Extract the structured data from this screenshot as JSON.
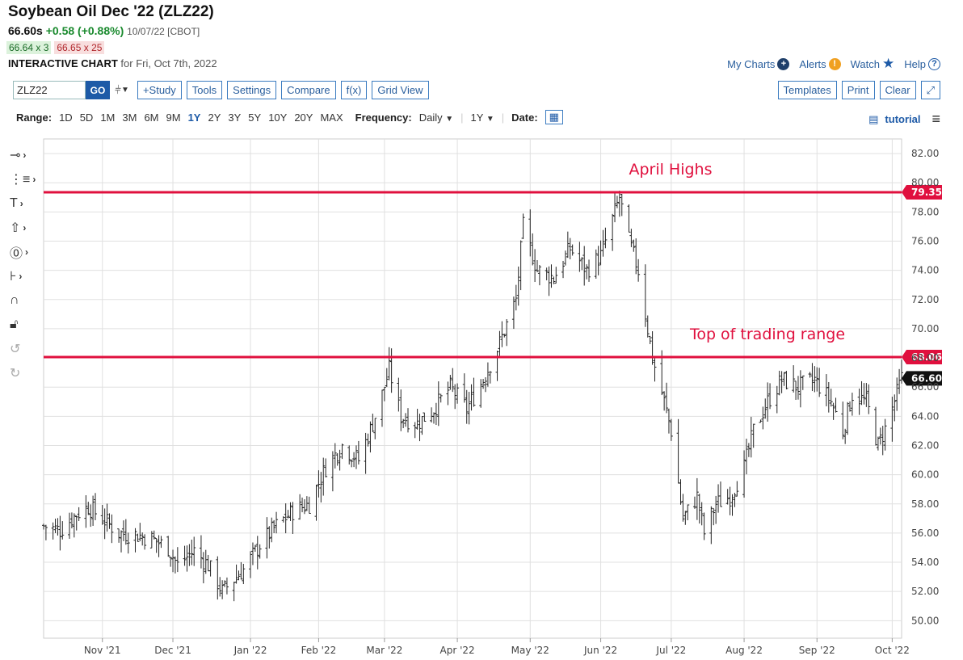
{
  "header": {
    "title": "Soybean Oil Dec '22 (ZLZ22)",
    "last": "66.60s",
    "change": "+0.58 (+0.88%)",
    "quote_date": "10/07/22 [CBOT]",
    "bid": "66.64 x 3",
    "ask": "66.65 x 25",
    "chart_label": "INTERACTIVE CHART",
    "chart_for": "for Fri, Oct 7th, 2022"
  },
  "top_links": {
    "my_charts": "My Charts",
    "alerts": "Alerts",
    "watch": "Watch",
    "help": "Help"
  },
  "toolbar": {
    "symbol_value": "ZLZ22",
    "go": "GO",
    "study": "+Study",
    "tools": "Tools",
    "settings": "Settings",
    "compare": "Compare",
    "fx": "f(x)",
    "grid_view": "Grid View",
    "templates": "Templates",
    "print": "Print",
    "clear": "Clear"
  },
  "range_bar": {
    "range_label": "Range:",
    "ranges": [
      "1D",
      "5D",
      "1M",
      "3M",
      "6M",
      "9M",
      "1Y",
      "2Y",
      "3Y",
      "5Y",
      "10Y",
      "20Y",
      "MAX"
    ],
    "active_range": "1Y",
    "frequency_label": "Frequency:",
    "frequency_value": "Daily",
    "period_value": "1Y",
    "date_label": "Date:",
    "tutorial": "tutorial"
  },
  "colors": {
    "accent": "#1d5aa7",
    "annotation_red": "#e0103e",
    "price_up": "#1a8a2e",
    "bar": "#222222",
    "grid": "#e0e0e0"
  },
  "chart_data": {
    "type": "ohlc",
    "title": "Soybean Oil Dec '22 (ZLZ22)",
    "x_range": [
      "2021-10-07",
      "2022-10-07"
    ],
    "ylim": [
      48.8,
      83.0
    ],
    "y_ticks": [
      "82.00",
      "80.00",
      "78.00",
      "76.00",
      "74.00",
      "72.00",
      "70.00",
      "68.00",
      "66.00",
      "64.00",
      "62.00",
      "60.00",
      "58.00",
      "56.00",
      "54.00",
      "52.00",
      "50.00"
    ],
    "x_ticks": [
      {
        "label": "Nov '21",
        "date": "2021-11-01"
      },
      {
        "label": "Dec '21",
        "date": "2021-12-01"
      },
      {
        "label": "Jan '22",
        "date": "2022-01-03"
      },
      {
        "label": "Feb '22",
        "date": "2022-02-01"
      },
      {
        "label": "Mar '22",
        "date": "2022-03-01"
      },
      {
        "label": "Apr '22",
        "date": "2022-04-01"
      },
      {
        "label": "May '22",
        "date": "2022-05-02"
      },
      {
        "label": "Jun '22",
        "date": "2022-06-01"
      },
      {
        "label": "Jul '22",
        "date": "2022-07-01"
      },
      {
        "label": "Aug '22",
        "date": "2022-08-01"
      },
      {
        "label": "Sep '22",
        "date": "2022-09-01"
      },
      {
        "label": "Oct '22",
        "date": "2022-10-03"
      }
    ],
    "horizontal_lines": [
      {
        "value": 79.35,
        "label": "79.35",
        "annotation": "April Highs"
      },
      {
        "value": 68.06,
        "label": "68.06",
        "annotation": "Top of trading range"
      }
    ],
    "last_price": {
      "value": 66.6,
      "label": "66.60"
    },
    "series": [
      {
        "name": "ZLZ22",
        "close_path": [
          [
            "2021-10-07",
            56.5
          ],
          [
            "2021-10-14",
            56.2
          ],
          [
            "2021-10-21",
            57.3
          ],
          [
            "2021-10-26",
            57.8
          ],
          [
            "2021-11-01",
            57.0
          ],
          [
            "2021-11-08",
            56.0
          ],
          [
            "2021-11-15",
            55.9
          ],
          [
            "2021-11-22",
            55.6
          ],
          [
            "2021-11-29",
            55.0
          ],
          [
            "2021-12-03",
            53.8
          ],
          [
            "2021-12-10",
            54.8
          ],
          [
            "2021-12-16",
            53.8
          ],
          [
            "2021-12-22",
            52.0
          ],
          [
            "2021-12-31",
            53.5
          ],
          [
            "2022-01-07",
            55.2
          ],
          [
            "2022-01-14",
            56.5
          ],
          [
            "2022-01-21",
            57.5
          ],
          [
            "2022-01-28",
            58.0
          ],
          [
            "2022-02-04",
            60.5
          ],
          [
            "2022-02-11",
            62.0
          ],
          [
            "2022-02-18",
            61.0
          ],
          [
            "2022-02-24",
            63.5
          ],
          [
            "2022-02-28",
            65.5
          ],
          [
            "2022-03-03",
            67.2
          ],
          [
            "2022-03-08",
            64.0
          ],
          [
            "2022-03-15",
            63.5
          ],
          [
            "2022-03-22",
            64.5
          ],
          [
            "2022-03-29",
            66.0
          ],
          [
            "2022-04-05",
            64.5
          ],
          [
            "2022-04-12",
            66.5
          ],
          [
            "2022-04-19",
            69.0
          ],
          [
            "2022-04-26",
            72.0
          ],
          [
            "2022-04-29",
            77.0
          ],
          [
            "2022-05-05",
            74.0
          ],
          [
            "2022-05-12",
            73.5
          ],
          [
            "2022-05-19",
            75.5
          ],
          [
            "2022-05-26",
            74.0
          ],
          [
            "2022-06-01",
            75.0
          ],
          [
            "2022-06-06",
            77.5
          ],
          [
            "2022-06-09",
            79.0
          ],
          [
            "2022-06-13",
            76.0
          ],
          [
            "2022-06-17",
            74.0
          ],
          [
            "2022-06-23",
            68.0
          ],
          [
            "2022-06-28",
            65.0
          ],
          [
            "2022-07-01",
            63.0
          ],
          [
            "2022-07-06",
            57.0
          ],
          [
            "2022-07-12",
            58.5
          ],
          [
            "2022-07-15",
            56.0
          ],
          [
            "2022-07-20",
            58.0
          ],
          [
            "2022-07-26",
            58.5
          ],
          [
            "2022-08-01",
            60.5
          ],
          [
            "2022-08-05",
            63.0
          ],
          [
            "2022-08-11",
            65.0
          ],
          [
            "2022-08-17",
            66.5
          ],
          [
            "2022-08-24",
            66.0
          ],
          [
            "2022-08-31",
            66.5
          ],
          [
            "2022-09-07",
            65.0
          ],
          [
            "2022-09-12",
            63.0
          ],
          [
            "2022-09-16",
            65.5
          ],
          [
            "2022-09-22",
            65.0
          ],
          [
            "2022-09-27",
            62.0
          ],
          [
            "2022-10-01",
            63.5
          ],
          [
            "2022-10-07",
            66.6
          ]
        ]
      }
    ]
  }
}
